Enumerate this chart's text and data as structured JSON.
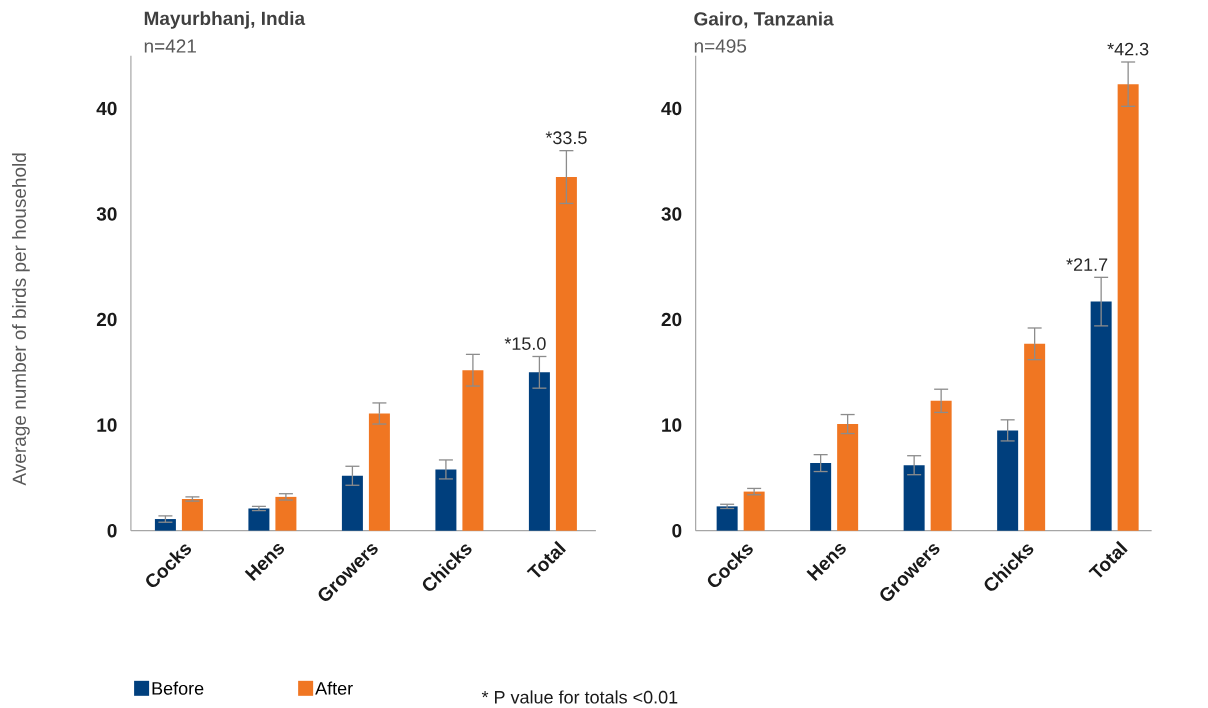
{
  "chart_data": [
    {
      "type": "bar",
      "title": "Mayurbhanj, India",
      "subtitle": "n=421",
      "ylabel": "Average number of birds per household",
      "categories": [
        "Cocks",
        "Hens",
        "Growers",
        "Chicks",
        "Total"
      ],
      "series": [
        {
          "name": "Before",
          "color": "#003f7d",
          "values": [
            1.1,
            2.1,
            5.2,
            5.8,
            15.0
          ],
          "errors": [
            0.3,
            0.2,
            0.9,
            0.9,
            1.5
          ],
          "value_labels": [
            null,
            null,
            null,
            null,
            "*15.0"
          ]
        },
        {
          "name": "After",
          "color": "#f07622",
          "values": [
            3.0,
            3.2,
            11.1,
            15.2,
            33.5
          ],
          "errors": [
            0.2,
            0.3,
            1.0,
            1.5,
            2.5
          ],
          "value_labels": [
            null,
            null,
            null,
            null,
            "*33.5"
          ]
        }
      ],
      "ylim": [
        0,
        45
      ],
      "yticks": [
        0,
        10,
        20,
        30,
        40
      ],
      "legend": "bottom",
      "annotations": [
        "* P value for totals <0.01"
      ]
    },
    {
      "type": "bar",
      "title": "Gairo, Tanzania",
      "subtitle": "n=495",
      "categories": [
        "Cocks",
        "Hens",
        "Growers",
        "Chicks",
        "Total"
      ],
      "series": [
        {
          "color": "#003f7d",
          "values": [
            2.3,
            6.4,
            6.2,
            9.5,
            21.7
          ],
          "errors": [
            0.2,
            0.8,
            0.9,
            1.0,
            2.3
          ],
          "value_labels": [
            null,
            null,
            null,
            null,
            "*21.7"
          ]
        },
        {
          "color": "#f07622",
          "values": [
            3.7,
            10.1,
            12.3,
            17.7,
            42.3
          ],
          "errors": [
            0.3,
            0.9,
            1.1,
            1.5,
            2.1
          ],
          "value_labels": [
            null,
            null,
            null,
            null,
            "*42.3"
          ]
        }
      ],
      "ylim": [
        0,
        45
      ],
      "yticks": [
        0,
        10,
        20,
        30,
        40
      ]
    }
  ]
}
